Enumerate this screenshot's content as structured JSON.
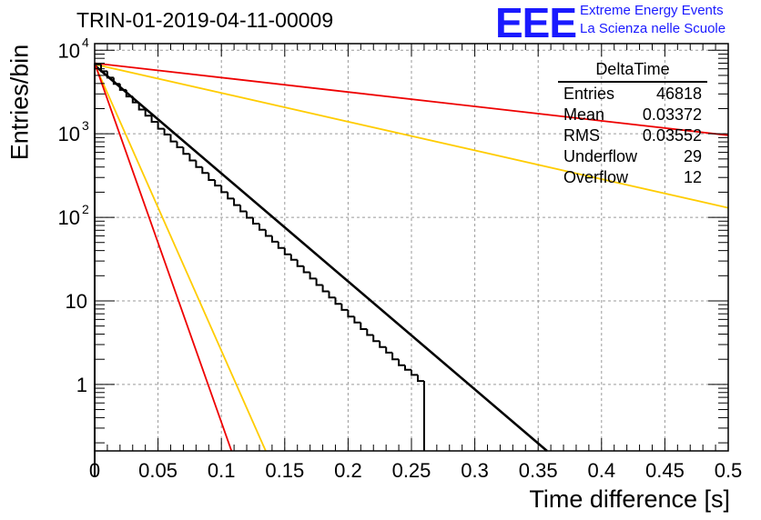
{
  "header": {
    "title": "TRIN-01-2019-04-11-00009",
    "logo_text": "EEE",
    "brand_line1": "Extreme Energy Events",
    "brand_line2": "La Scienza nelle Scuole"
  },
  "stats_box": {
    "title": "DeltaTime",
    "rows": [
      {
        "label": "Entries",
        "value": "46818"
      },
      {
        "label": "Mean",
        "value": "0.03372"
      },
      {
        "label": "RMS",
        "value": "0.03552"
      },
      {
        "label": "Underflow",
        "value": "29"
      },
      {
        "label": "Overflow",
        "value": "12"
      }
    ]
  },
  "chart_data": {
    "type": "line",
    "xlabel": "Time difference [s]",
    "ylabel": "Entries/bin",
    "xlim": [
      0,
      0.5
    ],
    "ylim": [
      0.16,
      12000
    ],
    "yscale": "log",
    "grid": true,
    "x_ticks": [
      "0",
      "0.05",
      "0.1",
      "0.15",
      "0.2",
      "0.25",
      "0.3",
      "0.35",
      "0.4",
      "0.45",
      "0.5"
    ],
    "y_ticks": [
      {
        "value": 1,
        "label": "1"
      },
      {
        "value": 10,
        "label": "10"
      },
      {
        "value": 100,
        "label": "10",
        "exp": "2"
      },
      {
        "value": 1000,
        "label": "10",
        "exp": "3"
      },
      {
        "value": 10000,
        "label": "10",
        "exp": "4"
      }
    ],
    "histogram": {
      "color": "#000000",
      "bin_width": 0.005,
      "values": [
        6800,
        5600,
        4700,
        3950,
        3350,
        2800,
        2380,
        1950,
        1650,
        1390,
        1150,
        980,
        810,
        690,
        575,
        480,
        400,
        340,
        280,
        240,
        200,
        168,
        140,
        118,
        99,
        84,
        71,
        60,
        51,
        43,
        36,
        31,
        26,
        22,
        18.5,
        15.5,
        13,
        11,
        9.2,
        7.8,
        6.5,
        5.5,
        4.6,
        3.9,
        3.3,
        2.8,
        2.4,
        2.0,
        1.7,
        1.5,
        1.3,
        1.1
      ]
    },
    "series": [
      {
        "color": "#000000",
        "points": [
          [
            0,
            6600
          ],
          [
            0.357,
            0.16
          ]
        ]
      },
      {
        "color": "#ffcc00",
        "points": [
          [
            0,
            6800
          ],
          [
            0.5,
            130
          ]
        ]
      },
      {
        "color": "#ee0000",
        "points": [
          [
            0,
            7000
          ],
          [
            0.5,
            960
          ]
        ]
      },
      {
        "color": "#ffcc00",
        "points": [
          [
            0,
            6800
          ],
          [
            0.135,
            0.16
          ]
        ]
      },
      {
        "color": "#ee0000",
        "points": [
          [
            0,
            7000
          ],
          [
            0.108,
            0.16
          ]
        ]
      }
    ]
  }
}
